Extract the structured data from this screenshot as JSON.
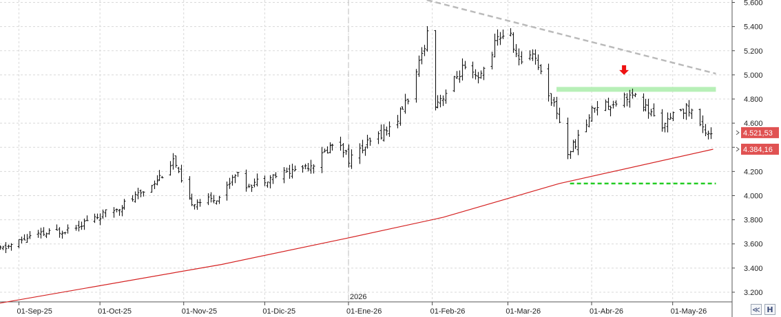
{
  "chart_data": {
    "type": "candlestick",
    "title": "",
    "xlabel": "",
    "ylabel": "",
    "y_axis_position": "right",
    "ylim": [
      3120,
      5620
    ],
    "y_ticks": [
      3200,
      3400,
      3600,
      3800,
      4000,
      4200,
      4400,
      4600,
      4800,
      5000,
      5200,
      5400,
      5600
    ],
    "y_tick_labels": [
      "3.200",
      "3.400",
      "3.600",
      "3.800",
      "4.000",
      "4.200",
      "4.400",
      "4.600",
      "4.800",
      "5.000",
      "5.200",
      "5.400",
      "5.600"
    ],
    "x_range": [
      "2025-08-25",
      "2026-05-23"
    ],
    "x_ticks": [
      "2025-09-01",
      "2025-10-01",
      "2025-11-01",
      "2025-12-01",
      "2026-01-01",
      "2026-02-01",
      "2026-03-01",
      "2026-04-01",
      "2026-05-01"
    ],
    "x_tick_labels": [
      "01-Sep-25",
      "01-Oct-25",
      "01-Nov-25",
      "01-Dic-25",
      "01-Ene-26",
      "01-Feb-26",
      "01-Mar-26",
      "01-Abr-26",
      "01-May-26"
    ],
    "year_marker": {
      "date": "2026-01-01",
      "label": "2026"
    },
    "grid": true,
    "ohlc_anchors": [
      [
        "2025-08-25",
        3550
      ],
      [
        "2025-09-05",
        3660
      ],
      [
        "2025-09-15",
        3700
      ],
      [
        "2025-09-25",
        3780
      ],
      [
        "2025-10-05",
        3870
      ],
      [
        "2025-10-15",
        4000
      ],
      [
        "2025-10-25",
        4200
      ],
      [
        "2025-10-28",
        4300
      ],
      [
        "2025-10-31",
        4100
      ],
      [
        "2025-11-03",
        3950
      ],
      [
        "2025-11-10",
        3960
      ],
      [
        "2025-11-15",
        4000
      ],
      [
        "2025-11-20",
        4200
      ],
      [
        "2025-11-23",
        4080
      ],
      [
        "2025-12-01",
        4140
      ],
      [
        "2025-12-10",
        4200
      ],
      [
        "2025-12-20",
        4280
      ],
      [
        "2025-12-28",
        4480
      ],
      [
        "2026-01-01",
        4300
      ],
      [
        "2026-01-10",
        4460
      ],
      [
        "2026-01-18",
        4600
      ],
      [
        "2026-01-25",
        4900
      ],
      [
        "2026-01-30",
        5350
      ],
      [
        "2026-02-01",
        4750
      ],
      [
        "2026-02-06",
        4850
      ],
      [
        "2026-02-12",
        5050
      ],
      [
        "2026-02-18",
        4950
      ],
      [
        "2026-02-25",
        5300
      ],
      [
        "2026-03-01",
        5380
      ],
      [
        "2026-03-05",
        5100
      ],
      [
        "2026-03-10",
        5200
      ],
      [
        "2026-03-15",
        4900
      ],
      [
        "2026-03-19",
        4700
      ],
      [
        "2026-03-23",
        4350
      ],
      [
        "2026-03-28",
        4500
      ],
      [
        "2026-04-02",
        4750
      ],
      [
        "2026-04-08",
        4760
      ],
      [
        "2026-04-14",
        4830
      ],
      [
        "2026-04-18",
        4800
      ],
      [
        "2026-04-24",
        4650
      ],
      [
        "2026-04-28",
        4580
      ],
      [
        "2026-05-04",
        4730
      ],
      [
        "2026-05-08",
        4700
      ],
      [
        "2026-05-12",
        4550
      ],
      [
        "2026-05-16",
        4521
      ]
    ],
    "moving_average": {
      "color": "#d42020",
      "points": [
        [
          "2025-08-25",
          3110
        ],
        [
          "2025-11-15",
          3430
        ],
        [
          "2026-01-01",
          3650
        ],
        [
          "2026-02-05",
          3820
        ],
        [
          "2026-03-20",
          4100
        ],
        [
          "2026-05-16",
          4384
        ]
      ]
    },
    "annotations": {
      "downtrend_line": {
        "color": "#bbbbbb",
        "style": "dashed",
        "from": [
          "2026-01-30",
          5620
        ],
        "to": [
          "2026-05-17",
          5010
        ]
      },
      "resistance_zone": {
        "color": "#b7efb7",
        "value": 4880,
        "from": "2026-03-19",
        "to": "2026-05-17"
      },
      "support_line": {
        "color": "#22cc22",
        "style": "dashed",
        "value": 4100,
        "from": "2026-03-24",
        "to": "2026-05-17"
      },
      "arrow": {
        "color": "#ee1111",
        "direction": "down",
        "date": "2026-04-13",
        "value": 5000
      }
    },
    "price_labels": [
      {
        "text": "4.521,53",
        "value": 4521.53,
        "color": "#e05252"
      },
      {
        "text": "4.384,16",
        "value": 4384.16,
        "color": "#e05252"
      }
    ]
  },
  "ui": {
    "zoom_icon": "double-chevron-icon",
    "settings_icon": "letter-h-icon",
    "settings_label": "H"
  }
}
